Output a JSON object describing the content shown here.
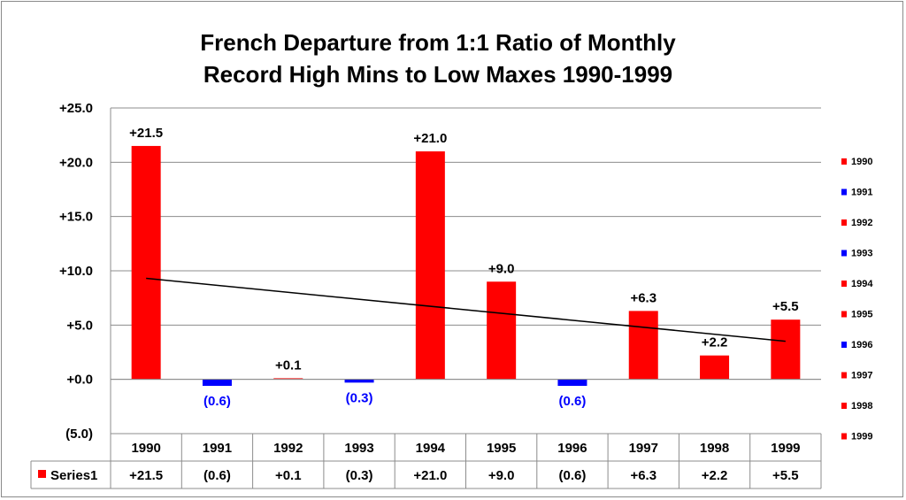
{
  "chart_data": {
    "type": "bar",
    "title_line1": "French Departure from 1:1 Ratio of Monthly",
    "title_line2": "Record High Mins to  Low Maxes 1990-1999",
    "categories": [
      "1990",
      "1991",
      "1992",
      "1993",
      "1994",
      "1995",
      "1996",
      "1997",
      "1998",
      "1999"
    ],
    "series": [
      {
        "name": "Series1",
        "values": [
          21.5,
          -0.6,
          0.1,
          -0.3,
          21.0,
          9.0,
          -0.6,
          6.3,
          2.2,
          5.5
        ],
        "labels": [
          "+21.5",
          "(0.6)",
          "+0.1",
          "(0.3)",
          "+21.0",
          "+9.0",
          "(0.6)",
          "+6.3",
          "+2.2",
          "+5.5"
        ]
      }
    ],
    "ylim": [
      -5,
      25
    ],
    "yticks": [
      25,
      20,
      15,
      10,
      5,
      0,
      -5
    ],
    "ytick_labels": [
      "+25.0",
      "+20.0",
      "+15.0",
      "+10.0",
      "+5.0",
      "+0.0",
      "(5.0)"
    ],
    "positive_color": "#ff0000",
    "negative_color": "#0000ff",
    "trendline": {
      "type": "linear",
      "color": "#000000"
    },
    "data_table": true,
    "legend_placement": "right",
    "grid": true
  }
}
